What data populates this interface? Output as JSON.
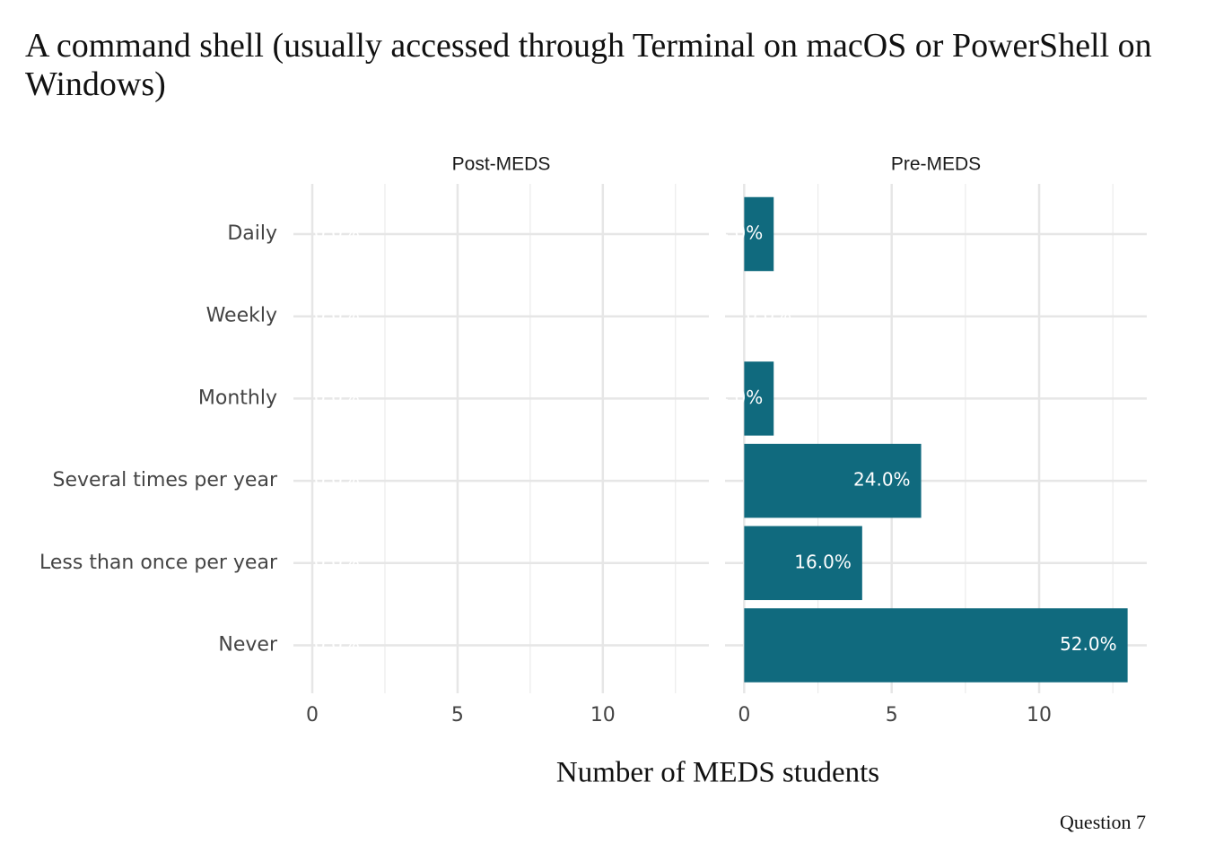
{
  "title": "A command shell (usually accessed through Terminal on macOS or PowerShell on Windows)",
  "xlabel": "Number of MEDS students",
  "caption": "Question 7",
  "chart_data": [
    {
      "type": "bar",
      "orientation": "horizontal",
      "subtitle": "Post-MEDS",
      "categories": [
        "Daily",
        "Weekly",
        "Monthly",
        "Several times per year",
        "Less than once per year",
        "Never"
      ],
      "values": [
        0,
        0,
        0,
        0,
        0,
        0
      ],
      "value_labels": [
        "0.0%",
        "0.0%",
        "0.0%",
        "0.0%",
        "0.0%",
        "0.0%"
      ],
      "color": "#106a7e",
      "xlim": [
        -0.65,
        13.65
      ],
      "xticks": [
        0,
        5,
        10
      ],
      "minor_xticks": [
        2.5,
        7.5,
        12.5
      ],
      "grid": true
    },
    {
      "type": "bar",
      "orientation": "horizontal",
      "subtitle": "Pre-MEDS",
      "categories": [
        "Daily",
        "Weekly",
        "Monthly",
        "Several times per year",
        "Less than once per year",
        "Never"
      ],
      "values": [
        1,
        0,
        1,
        6,
        4,
        13
      ],
      "value_labels": [
        "4.0%",
        "0.0%",
        "4.0%",
        "24.0%",
        "16.0%",
        "52.0%"
      ],
      "color": "#106a7e",
      "xlim": [
        -0.65,
        13.65
      ],
      "xticks": [
        0,
        5,
        10
      ],
      "minor_xticks": [
        2.5,
        7.5,
        12.5
      ],
      "grid": true
    }
  ]
}
